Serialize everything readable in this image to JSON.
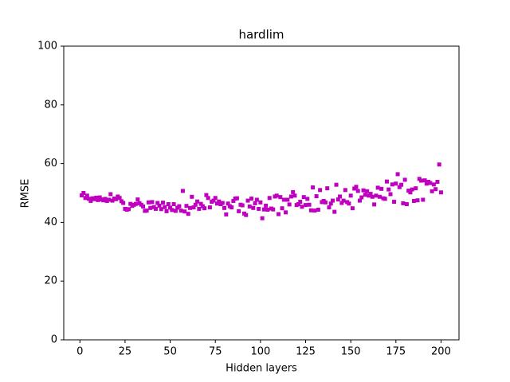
{
  "chart_data": {
    "type": "scatter",
    "title": "hardlim",
    "x_label": "Hidden layers",
    "y_label": "RMSE",
    "color": "#bf00bf",
    "marker": "square",
    "xlim": [
      -8.95,
      209.95
    ],
    "ylim": [
      0,
      100
    ],
    "xticks": [
      0,
      25,
      50,
      75,
      100,
      125,
      150,
      175,
      200
    ],
    "yticks": [
      0,
      20,
      40,
      60,
      80,
      100
    ],
    "grid": false,
    "x": [
      1,
      2,
      3,
      4,
      5,
      6,
      7,
      8,
      9,
      10,
      11,
      12,
      13,
      14,
      15,
      16,
      17,
      18,
      19,
      20,
      21,
      22,
      23,
      24,
      25,
      26,
      27,
      28,
      29,
      30,
      31,
      32,
      33,
      34,
      35,
      36,
      37,
      38,
      39,
      40,
      41,
      42,
      43,
      44,
      45,
      46,
      47,
      48,
      49,
      50,
      51,
      52,
      53,
      54,
      55,
      56,
      57,
      58,
      59,
      60,
      61,
      62,
      63,
      64,
      65,
      66,
      67,
      68,
      69,
      70,
      71,
      72,
      73,
      74,
      75,
      76,
      77,
      78,
      79,
      80,
      81,
      82,
      83,
      84,
      85,
      86,
      87,
      88,
      89,
      90,
      91,
      92,
      93,
      94,
      95,
      96,
      97,
      98,
      99,
      100,
      101,
      102,
      103,
      104,
      105,
      106,
      107,
      108,
      109,
      110,
      111,
      112,
      113,
      114,
      115,
      116,
      117,
      118,
      119,
      120,
      121,
      122,
      123,
      124,
      125,
      126,
      127,
      128,
      129,
      130,
      131,
      132,
      133,
      134,
      135,
      136,
      137,
      138,
      139,
      140,
      141,
      142,
      143,
      144,
      145,
      146,
      147,
      148,
      149,
      150,
      151,
      152,
      153,
      154,
      155,
      156,
      157,
      158,
      159,
      160,
      161,
      162,
      163,
      164,
      165,
      166,
      167,
      168,
      169,
      170,
      171,
      172,
      173,
      174,
      175,
      176,
      177,
      178,
      179,
      180,
      181,
      182,
      183,
      184,
      185,
      186,
      187,
      188,
      189,
      190,
      191,
      192,
      193,
      194,
      195,
      196,
      197,
      198,
      199,
      200
    ],
    "values": [
      49.2,
      50.0,
      48.3,
      49.1,
      48.0,
      47.3,
      48.2,
      47.9,
      48.4,
      47.6,
      48.5,
      47.8,
      47.5,
      48.0,
      47.3,
      47.7,
      49.6,
      47.4,
      48.1,
      47.9,
      48.8,
      48.3,
      47.2,
      46.6,
      44.6,
      44.3,
      44.5,
      46.3,
      45.6,
      46.0,
      46.3,
      47.8,
      46.5,
      46.0,
      45.4,
      43.9,
      44.0,
      46.8,
      44.9,
      46.9,
      45.2,
      44.6,
      46.6,
      45.7,
      44.5,
      46.7,
      45.2,
      43.8,
      46.2,
      45.0,
      44.2,
      46.2,
      43.9,
      45.0,
      45.5,
      44.0,
      50.7,
      43.7,
      45.6,
      42.9,
      44.9,
      48.7,
      45.1,
      46.0,
      47.1,
      44.6,
      46.3,
      45.5,
      44.8,
      49.3,
      48.3,
      45.1,
      47.0,
      47.4,
      48.3,
      46.4,
      47.1,
      46.2,
      46.6,
      44.9,
      42.7,
      46.4,
      45.5,
      45.1,
      47.3,
      48.1,
      48.2,
      43.8,
      46.0,
      45.8,
      43.0,
      42.5,
      47.4,
      45.4,
      48.1,
      44.9,
      46.5,
      47.7,
      44.6,
      46.8,
      41.4,
      44.4,
      45.7,
      44.3,
      48.3,
      44.7,
      44.4,
      48.8,
      49.1,
      42.8,
      48.6,
      44.8,
      47.7,
      43.4,
      47.7,
      46.1,
      48.8,
      50.3,
      49.1,
      45.9,
      46.2,
      47.0,
      45.3,
      48.6,
      45.9,
      48.0,
      46.0,
      44.1,
      51.9,
      44.0,
      48.9,
      44.3,
      51.0,
      46.9,
      47.3,
      46.8,
      51.6,
      45.1,
      46.4,
      47.4,
      43.6,
      52.8,
      47.8,
      48.8,
      46.6,
      47.4,
      51.0,
      46.9,
      46.4,
      49.1,
      44.8,
      51.5,
      52.1,
      50.7,
      47.4,
      48.5,
      50.9,
      49.4,
      50.6,
      49.1,
      49.7,
      48.7,
      46.1,
      49.1,
      51.8,
      48.7,
      51.4,
      48.2,
      48.0,
      53.9,
      51.2,
      49.6,
      52.9,
      47.0,
      53.2,
      56.4,
      52.0,
      52.8,
      46.5,
      54.5,
      46.2,
      50.8,
      50.2,
      51.2,
      47.3,
      51.6,
      47.5,
      54.8,
      54.2,
      47.7,
      54.3,
      53.2,
      53.8,
      53.4,
      50.6,
      52.9,
      51.3,
      53.8,
      59.7,
      50.2
    ]
  }
}
